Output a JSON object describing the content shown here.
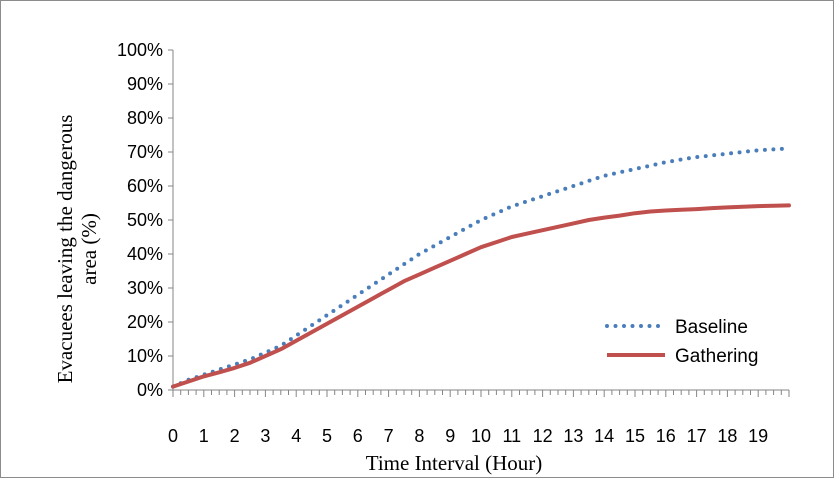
{
  "chart_data": {
    "type": "line",
    "title": "",
    "xlabel": "Time Interval  (Hour)",
    "ylabel_lines": [
      "Evacuees leaving the dangerous",
      "area (%)"
    ],
    "categories": [
      "0",
      "1",
      "2",
      "3",
      "4",
      "5",
      "6",
      "7",
      "8",
      "9",
      "10",
      "11",
      "12",
      "13",
      "14",
      "15",
      "16",
      "17",
      "18",
      "19"
    ],
    "x_range": [
      0,
      20
    ],
    "ylim": [
      0,
      100
    ],
    "y_ticks": [
      "0%",
      "10%",
      "20%",
      "30%",
      "40%",
      "50%",
      "60%",
      "70%",
      "80%",
      "90%",
      "100%"
    ],
    "grid": false,
    "legend_position": "lower-right",
    "series": [
      {
        "name": "Baseline",
        "style": "dotted",
        "color": "#4a7ebb",
        "x": [
          0,
          0.5,
          1,
          1.5,
          2,
          2.5,
          3,
          3.5,
          4,
          4.5,
          5,
          5.5,
          6,
          6.5,
          7,
          7.5,
          8,
          8.5,
          9,
          9.5,
          10,
          10.5,
          11,
          11.5,
          12,
          12.5,
          13,
          13.5,
          14,
          14.5,
          15,
          15.5,
          16,
          16.5,
          17,
          17.5,
          18,
          18.5,
          19,
          19.5,
          20
        ],
        "y": [
          1,
          3,
          4.5,
          6,
          7.5,
          9,
          11,
          13,
          16,
          19,
          22,
          25,
          28,
          31,
          34,
          37,
          40,
          42.5,
          45,
          47.5,
          50,
          52,
          54,
          55.5,
          57,
          58.5,
          60,
          61.5,
          63,
          64,
          65,
          66,
          67,
          67.8,
          68.5,
          69,
          69.5,
          70,
          70.5,
          70.8,
          71
        ]
      },
      {
        "name": "Gathering",
        "style": "solid",
        "color": "#c0504d",
        "x": [
          0,
          0.5,
          1,
          1.5,
          2,
          2.5,
          3,
          3.5,
          4,
          4.5,
          5,
          5.5,
          6,
          6.5,
          7,
          7.5,
          8,
          8.5,
          9,
          9.5,
          10,
          10.5,
          11,
          11.5,
          12,
          12.5,
          13,
          13.5,
          14,
          14.5,
          15,
          15.5,
          16,
          16.5,
          17,
          17.5,
          18,
          18.5,
          19,
          19.5,
          20
        ],
        "y": [
          1,
          2.5,
          4,
          5.2,
          6.5,
          8,
          10,
          12,
          14.5,
          17,
          19.5,
          22,
          24.5,
          27,
          29.5,
          32,
          34,
          36,
          38,
          40,
          42,
          43.5,
          45,
          46,
          47,
          48,
          49,
          50,
          50.7,
          51.3,
          52,
          52.5,
          52.8,
          53,
          53.2,
          53.5,
          53.7,
          53.9,
          54.1,
          54.2,
          54.3
        ]
      }
    ]
  }
}
